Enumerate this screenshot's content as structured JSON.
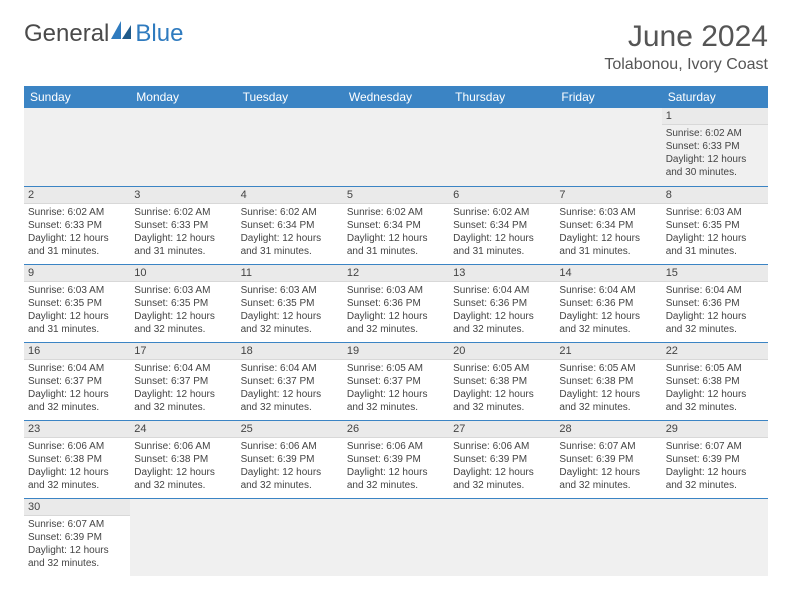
{
  "brand": {
    "part1": "General",
    "part2": "Blue"
  },
  "title": "June 2024",
  "location": "Tolabonou, Ivory Coast",
  "colors": {
    "header_bg": "#3b84c4",
    "header_text": "#ffffff",
    "daynum_bg": "#eaeaea",
    "row_divider": "#3b84c4",
    "text": "#444444",
    "brand_grey": "#4a4a4a",
    "brand_blue": "#2f7bbf"
  },
  "day_headers": [
    "Sunday",
    "Monday",
    "Tuesday",
    "Wednesday",
    "Thursday",
    "Friday",
    "Saturday"
  ],
  "weeks": [
    [
      null,
      null,
      null,
      null,
      null,
      null,
      {
        "n": "1",
        "sunrise": "Sunrise: 6:02 AM",
        "sunset": "Sunset: 6:33 PM",
        "daylight": "Daylight: 12 hours and 30 minutes."
      }
    ],
    [
      {
        "n": "2",
        "sunrise": "Sunrise: 6:02 AM",
        "sunset": "Sunset: 6:33 PM",
        "daylight": "Daylight: 12 hours and 31 minutes."
      },
      {
        "n": "3",
        "sunrise": "Sunrise: 6:02 AM",
        "sunset": "Sunset: 6:33 PM",
        "daylight": "Daylight: 12 hours and 31 minutes."
      },
      {
        "n": "4",
        "sunrise": "Sunrise: 6:02 AM",
        "sunset": "Sunset: 6:34 PM",
        "daylight": "Daylight: 12 hours and 31 minutes."
      },
      {
        "n": "5",
        "sunrise": "Sunrise: 6:02 AM",
        "sunset": "Sunset: 6:34 PM",
        "daylight": "Daylight: 12 hours and 31 minutes."
      },
      {
        "n": "6",
        "sunrise": "Sunrise: 6:02 AM",
        "sunset": "Sunset: 6:34 PM",
        "daylight": "Daylight: 12 hours and 31 minutes."
      },
      {
        "n": "7",
        "sunrise": "Sunrise: 6:03 AM",
        "sunset": "Sunset: 6:34 PM",
        "daylight": "Daylight: 12 hours and 31 minutes."
      },
      {
        "n": "8",
        "sunrise": "Sunrise: 6:03 AM",
        "sunset": "Sunset: 6:35 PM",
        "daylight": "Daylight: 12 hours and 31 minutes."
      }
    ],
    [
      {
        "n": "9",
        "sunrise": "Sunrise: 6:03 AM",
        "sunset": "Sunset: 6:35 PM",
        "daylight": "Daylight: 12 hours and 31 minutes."
      },
      {
        "n": "10",
        "sunrise": "Sunrise: 6:03 AM",
        "sunset": "Sunset: 6:35 PM",
        "daylight": "Daylight: 12 hours and 32 minutes."
      },
      {
        "n": "11",
        "sunrise": "Sunrise: 6:03 AM",
        "sunset": "Sunset: 6:35 PM",
        "daylight": "Daylight: 12 hours and 32 minutes."
      },
      {
        "n": "12",
        "sunrise": "Sunrise: 6:03 AM",
        "sunset": "Sunset: 6:36 PM",
        "daylight": "Daylight: 12 hours and 32 minutes."
      },
      {
        "n": "13",
        "sunrise": "Sunrise: 6:04 AM",
        "sunset": "Sunset: 6:36 PM",
        "daylight": "Daylight: 12 hours and 32 minutes."
      },
      {
        "n": "14",
        "sunrise": "Sunrise: 6:04 AM",
        "sunset": "Sunset: 6:36 PM",
        "daylight": "Daylight: 12 hours and 32 minutes."
      },
      {
        "n": "15",
        "sunrise": "Sunrise: 6:04 AM",
        "sunset": "Sunset: 6:36 PM",
        "daylight": "Daylight: 12 hours and 32 minutes."
      }
    ],
    [
      {
        "n": "16",
        "sunrise": "Sunrise: 6:04 AM",
        "sunset": "Sunset: 6:37 PM",
        "daylight": "Daylight: 12 hours and 32 minutes."
      },
      {
        "n": "17",
        "sunrise": "Sunrise: 6:04 AM",
        "sunset": "Sunset: 6:37 PM",
        "daylight": "Daylight: 12 hours and 32 minutes."
      },
      {
        "n": "18",
        "sunrise": "Sunrise: 6:04 AM",
        "sunset": "Sunset: 6:37 PM",
        "daylight": "Daylight: 12 hours and 32 minutes."
      },
      {
        "n": "19",
        "sunrise": "Sunrise: 6:05 AM",
        "sunset": "Sunset: 6:37 PM",
        "daylight": "Daylight: 12 hours and 32 minutes."
      },
      {
        "n": "20",
        "sunrise": "Sunrise: 6:05 AM",
        "sunset": "Sunset: 6:38 PM",
        "daylight": "Daylight: 12 hours and 32 minutes."
      },
      {
        "n": "21",
        "sunrise": "Sunrise: 6:05 AM",
        "sunset": "Sunset: 6:38 PM",
        "daylight": "Daylight: 12 hours and 32 minutes."
      },
      {
        "n": "22",
        "sunrise": "Sunrise: 6:05 AM",
        "sunset": "Sunset: 6:38 PM",
        "daylight": "Daylight: 12 hours and 32 minutes."
      }
    ],
    [
      {
        "n": "23",
        "sunrise": "Sunrise: 6:06 AM",
        "sunset": "Sunset: 6:38 PM",
        "daylight": "Daylight: 12 hours and 32 minutes."
      },
      {
        "n": "24",
        "sunrise": "Sunrise: 6:06 AM",
        "sunset": "Sunset: 6:38 PM",
        "daylight": "Daylight: 12 hours and 32 minutes."
      },
      {
        "n": "25",
        "sunrise": "Sunrise: 6:06 AM",
        "sunset": "Sunset: 6:39 PM",
        "daylight": "Daylight: 12 hours and 32 minutes."
      },
      {
        "n": "26",
        "sunrise": "Sunrise: 6:06 AM",
        "sunset": "Sunset: 6:39 PM",
        "daylight": "Daylight: 12 hours and 32 minutes."
      },
      {
        "n": "27",
        "sunrise": "Sunrise: 6:06 AM",
        "sunset": "Sunset: 6:39 PM",
        "daylight": "Daylight: 12 hours and 32 minutes."
      },
      {
        "n": "28",
        "sunrise": "Sunrise: 6:07 AM",
        "sunset": "Sunset: 6:39 PM",
        "daylight": "Daylight: 12 hours and 32 minutes."
      },
      {
        "n": "29",
        "sunrise": "Sunrise: 6:07 AM",
        "sunset": "Sunset: 6:39 PM",
        "daylight": "Daylight: 12 hours and 32 minutes."
      }
    ],
    [
      {
        "n": "30",
        "sunrise": "Sunrise: 6:07 AM",
        "sunset": "Sunset: 6:39 PM",
        "daylight": "Daylight: 12 hours and 32 minutes."
      },
      null,
      null,
      null,
      null,
      null,
      null
    ]
  ]
}
